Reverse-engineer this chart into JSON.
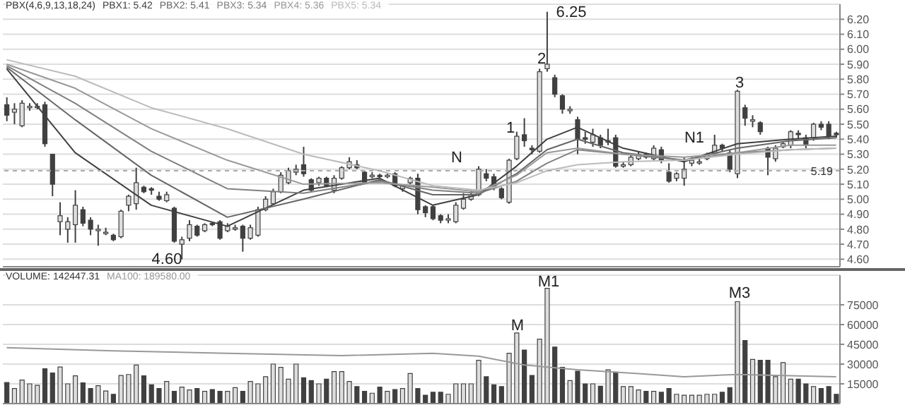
{
  "chart_data": [
    {
      "type": "candlestick",
      "title": "PBX(4,6,9,13,18,24)",
      "grid": "y",
      "tick_labels": "y",
      "categories": [
        null,
        null,
        null,
        null,
        null,
        null,
        null,
        null,
        null,
        null,
        null,
        null,
        null,
        null,
        null,
        null,
        null,
        null,
        null,
        null,
        null,
        null,
        null,
        null,
        null,
        null,
        null,
        null,
        null,
        null,
        null,
        null,
        null,
        null,
        null,
        null,
        null,
        null,
        null,
        null,
        null,
        null,
        null,
        null,
        null,
        null,
        null,
        null,
        null,
        null,
        null,
        null,
        null,
        null,
        null,
        null,
        null,
        null,
        null,
        null,
        null,
        null,
        null,
        null,
        null,
        null,
        null,
        null,
        null,
        null,
        null,
        null,
        null,
        null,
        null,
        null,
        null,
        null,
        null,
        null,
        null,
        null,
        null,
        null,
        null,
        null,
        null,
        null,
        null,
        null,
        null,
        null,
        null,
        null,
        null,
        null,
        null,
        null,
        null,
        null,
        null,
        null,
        null,
        null,
        null,
        null,
        null,
        null,
        null,
        null
      ],
      "ylim": [
        4.55,
        6.3
      ],
      "yticks": [
        {
          "value": 4.6,
          "label": "4.60"
        },
        {
          "value": 4.7,
          "label": "4.70"
        },
        {
          "value": 4.8,
          "label": "4.80"
        },
        {
          "value": 4.9,
          "label": "4.90"
        },
        {
          "value": 5.0,
          "label": "5.00"
        },
        {
          "value": 5.1,
          "label": "5.10"
        },
        {
          "value": 5.2,
          "label": "5.20"
        },
        {
          "value": 5.3,
          "label": "5.30"
        },
        {
          "value": 5.4,
          "label": "5.40"
        },
        {
          "value": 5.5,
          "label": "5.50"
        },
        {
          "value": 5.6,
          "label": "5.60"
        },
        {
          "value": 5.7,
          "label": "5.70"
        },
        {
          "value": 5.8,
          "label": "5.80"
        },
        {
          "value": 5.9,
          "label": "5.90"
        },
        {
          "value": 6.0,
          "label": "6.00"
        },
        {
          "value": 6.1,
          "label": "6.10"
        },
        {
          "value": 6.2,
          "label": "6.20"
        }
      ],
      "ohlc": [
        [
          5.63,
          5.68,
          5.52,
          5.56
        ],
        [
          5.58,
          5.64,
          5.5,
          5.6
        ],
        [
          5.49,
          5.66,
          5.48,
          5.64
        ],
        [
          5.61,
          5.64,
          5.59,
          5.62
        ],
        [
          5.62,
          5.64,
          5.6,
          5.62
        ],
        [
          5.63,
          5.65,
          5.35,
          5.37
        ],
        [
          5.3,
          5.3,
          5.02,
          5.1
        ],
        [
          4.85,
          4.98,
          4.76,
          4.89
        ],
        [
          4.8,
          4.88,
          4.71,
          4.85
        ],
        [
          4.83,
          5.06,
          4.71,
          4.96
        ],
        [
          4.93,
          4.95,
          4.82,
          4.84
        ],
        [
          4.86,
          4.88,
          4.76,
          4.8
        ],
        [
          4.79,
          4.83,
          4.69,
          4.8
        ],
        [
          4.78,
          4.81,
          4.76,
          4.78
        ],
        [
          4.76,
          4.77,
          4.72,
          4.73
        ],
        [
          4.75,
          4.93,
          4.74,
          4.92
        ],
        [
          4.96,
          5.03,
          4.92,
          5.02
        ],
        [
          4.97,
          5.21,
          4.93,
          5.11
        ],
        [
          5.08,
          5.09,
          5.04,
          5.05
        ],
        [
          5.07,
          5.08,
          5.03,
          5.06
        ],
        [
          5.02,
          5.05,
          4.99,
          5.0
        ],
        [
          4.99,
          5.05,
          4.98,
          5.03
        ],
        [
          4.94,
          4.95,
          4.71,
          4.72
        ],
        [
          4.7,
          4.75,
          4.6,
          4.73
        ],
        [
          4.74,
          4.86,
          4.72,
          4.83
        ],
        [
          4.82,
          4.83,
          4.75,
          4.76
        ],
        [
          4.79,
          4.84,
          4.78,
          4.83
        ],
        [
          4.84,
          4.85,
          4.82,
          4.83
        ],
        [
          4.85,
          4.86,
          4.73,
          4.74
        ],
        [
          4.79,
          4.84,
          4.78,
          4.82
        ],
        [
          4.8,
          4.83,
          4.79,
          4.81
        ],
        [
          4.82,
          4.83,
          4.65,
          4.74
        ],
        [
          4.74,
          4.83,
          4.73,
          4.81
        ],
        [
          4.76,
          4.95,
          4.75,
          4.93
        ],
        [
          4.93,
          5.02,
          4.92,
          5.0
        ],
        [
          4.97,
          5.07,
          4.96,
          5.05
        ],
        [
          5.05,
          5.18,
          5.04,
          5.16
        ],
        [
          5.11,
          5.21,
          5.1,
          5.19
        ],
        [
          5.18,
          5.23,
          5.16,
          5.2
        ],
        [
          5.23,
          5.35,
          5.15,
          5.17
        ],
        [
          5.13,
          5.14,
          5.05,
          5.06
        ],
        [
          5.11,
          5.15,
          5.09,
          5.14
        ],
        [
          5.14,
          5.15,
          5.08,
          5.09
        ],
        [
          5.06,
          5.16,
          5.04,
          5.14
        ],
        [
          5.14,
          5.22,
          5.13,
          5.21
        ],
        [
          5.21,
          5.28,
          5.2,
          5.25
        ],
        [
          5.23,
          5.26,
          5.2,
          5.21
        ],
        [
          5.18,
          5.19,
          5.1,
          5.11
        ],
        [
          5.15,
          5.18,
          5.14,
          5.16
        ],
        [
          5.16,
          5.17,
          5.14,
          5.15
        ],
        [
          5.15,
          5.17,
          5.14,
          5.16
        ],
        [
          5.17,
          5.18,
          5.08,
          5.09
        ],
        [
          5.07,
          5.1,
          5.05,
          5.09
        ],
        [
          5.11,
          5.15,
          5.1,
          5.14
        ],
        [
          5.14,
          5.17,
          4.9,
          4.93
        ],
        [
          4.95,
          4.96,
          4.88,
          4.91
        ],
        [
          4.95,
          4.96,
          4.86,
          4.87
        ],
        [
          4.89,
          4.9,
          4.84,
          4.86
        ],
        [
          4.86,
          4.9,
          4.84,
          4.87
        ],
        [
          4.85,
          4.98,
          4.84,
          4.96
        ],
        [
          4.94,
          5.04,
          4.93,
          5.0
        ],
        [
          5.0,
          5.06,
          4.99,
          5.03
        ],
        [
          5.03,
          5.22,
          5.02,
          5.2
        ],
        [
          5.17,
          5.2,
          5.12,
          5.14
        ],
        [
          5.15,
          5.17,
          5.06,
          5.08
        ],
        [
          5.07,
          5.08,
          5.0,
          5.01
        ],
        [
          4.98,
          5.27,
          4.97,
          5.26
        ],
        [
          5.27,
          5.45,
          5.26,
          5.42
        ],
        [
          5.43,
          5.54,
          5.35,
          5.39
        ],
        [
          5.34,
          5.36,
          5.3,
          5.33
        ],
        [
          5.32,
          5.87,
          5.31,
          5.85
        ],
        [
          5.87,
          6.25,
          5.85,
          5.9
        ],
        [
          5.81,
          5.83,
          5.68,
          5.7
        ],
        [
          5.69,
          5.7,
          5.57,
          5.6
        ],
        [
          5.59,
          5.62,
          5.57,
          5.6
        ],
        [
          5.53,
          5.55,
          5.3,
          5.4
        ],
        [
          5.41,
          5.45,
          5.37,
          5.4
        ],
        [
          5.38,
          5.47,
          5.35,
          5.43
        ],
        [
          5.41,
          5.43,
          5.34,
          5.36
        ],
        [
          5.38,
          5.47,
          5.36,
          5.39
        ],
        [
          5.41,
          5.43,
          5.21,
          5.22
        ],
        [
          5.22,
          5.25,
          5.21,
          5.23
        ],
        [
          5.23,
          5.3,
          5.22,
          5.28
        ],
        [
          5.27,
          5.32,
          5.26,
          5.3
        ],
        [
          5.3,
          5.31,
          5.27,
          5.28
        ],
        [
          5.27,
          5.36,
          5.26,
          5.34
        ],
        [
          5.33,
          5.35,
          5.24,
          5.26
        ],
        [
          5.18,
          5.24,
          5.11,
          5.12
        ],
        [
          5.14,
          5.18,
          5.12,
          5.17
        ],
        [
          5.14,
          5.28,
          5.09,
          5.2
        ],
        [
          5.24,
          5.28,
          5.22,
          5.26
        ],
        [
          5.25,
          5.27,
          5.23,
          5.25
        ],
        [
          5.27,
          5.31,
          5.26,
          5.3
        ],
        [
          5.31,
          5.43,
          5.3,
          5.36
        ],
        [
          5.36,
          5.37,
          5.32,
          5.34
        ],
        [
          5.31,
          5.33,
          5.18,
          5.2
        ],
        [
          5.17,
          5.73,
          5.14,
          5.72
        ],
        [
          5.61,
          5.63,
          5.49,
          5.54
        ],
        [
          5.52,
          5.56,
          5.48,
          5.53
        ],
        [
          5.51,
          5.52,
          5.43,
          5.45
        ],
        [
          5.34,
          5.35,
          5.16,
          5.28
        ],
        [
          5.27,
          5.36,
          5.25,
          5.34
        ],
        [
          5.35,
          5.38,
          5.34,
          5.37
        ],
        [
          5.36,
          5.46,
          5.34,
          5.45
        ],
        [
          5.44,
          5.46,
          5.4,
          5.43
        ],
        [
          5.41,
          5.43,
          5.34,
          5.36
        ],
        [
          5.41,
          5.51,
          5.39,
          5.5
        ],
        [
          5.5,
          5.52,
          5.46,
          5.48
        ],
        [
          5.5,
          5.52,
          5.4,
          5.42
        ],
        [
          5.44,
          5.45,
          5.41,
          5.43
        ]
      ],
      "colors": [
        "#404040",
        "#dddddd",
        "#dddddd",
        "#dddddd",
        "#dddddd",
        "#404040",
        "#404040",
        "#dddddd",
        "#dddddd",
        "#dddddd",
        "#404040",
        "#404040",
        "#dddddd",
        "#dddddd",
        "#404040",
        "#dddddd",
        "#dddddd",
        "#dddddd",
        "#404040",
        "#404040",
        "#404040",
        "#dddddd",
        "#404040",
        "#dddddd",
        "#dddddd",
        "#404040",
        "#dddddd",
        "#404040",
        "#404040",
        "#dddddd",
        "#dddddd",
        "#404040",
        "#dddddd",
        "#dddddd",
        "#dddddd",
        "#dddddd",
        "#dddddd",
        "#dddddd",
        "#dddddd",
        "#404040",
        "#404040",
        "#dddddd",
        "#404040",
        "#dddddd",
        "#dddddd",
        "#dddddd",
        "#404040",
        "#404040",
        "#dddddd",
        "#404040",
        "#dddddd",
        "#404040",
        "#dddddd",
        "#dddddd",
        "#404040",
        "#404040",
        "#404040",
        "#404040",
        "#dddddd",
        "#dddddd",
        "#dddddd",
        "#dddddd",
        "#dddddd",
        "#404040",
        "#404040",
        "#404040",
        "#dddddd",
        "#dddddd",
        "#404040",
        "#404040",
        "#dddddd",
        "#dddddd",
        "#404040",
        "#404040",
        "#dddddd",
        "#404040",
        "#404040",
        "#dddddd",
        "#404040",
        "#dddddd",
        "#404040",
        "#dddddd",
        "#dddddd",
        "#dddddd",
        "#404040",
        "#dddddd",
        "#404040",
        "#404040",
        "#dddddd",
        "#dddddd",
        "#dddddd",
        "#dddddd",
        "#dddddd",
        "#dddddd",
        "#404040",
        "#404040",
        "#dddddd",
        "#404040",
        "#dddddd",
        "#404040",
        "#404040",
        "#dddddd",
        "#dddddd",
        "#dddddd",
        "#404040",
        "#404040",
        "#dddddd",
        "#404040",
        "#404040",
        "#404040"
      ],
      "series": [
        {
          "type": "line",
          "name": "PBX1: 5.42",
          "color": "#404040",
          "values": [
            5.87,
            null,
            null,
            null,
            null,
            null,
            null,
            null,
            null,
            5.31,
            null,
            null,
            null,
            null,
            null,
            null,
            null,
            null,
            null,
            4.96,
            null,
            null,
            null,
            null,
            null,
            null,
            null,
            null,
            null,
            4.82,
            null,
            null,
            null,
            null,
            null,
            null,
            null,
            null,
            null,
            5.06,
            null,
            null,
            null,
            null,
            null,
            null,
            null,
            null,
            null,
            5.14,
            null,
            null,
            null,
            null,
            null,
            null,
            4.96,
            null,
            null,
            null,
            null,
            null,
            5.03,
            null,
            null,
            null,
            null,
            5.22,
            null,
            null,
            null,
            5.4,
            null,
            null,
            null,
            5.48,
            null,
            null,
            null,
            null,
            null,
            5.34,
            null,
            null,
            null,
            null,
            null,
            null,
            null,
            5.25,
            null,
            null,
            null,
            null,
            null,
            null,
            5.37,
            null,
            null,
            null,
            null,
            null,
            null,
            5.4,
            null,
            null,
            null,
            null,
            null,
            5.42
          ]
        },
        {
          "type": "line",
          "name": "PBX2: 5.41",
          "color": "#666666",
          "values": [
            5.88,
            null,
            null,
            null,
            null,
            null,
            null,
            null,
            null,
            5.53,
            null,
            null,
            null,
            null,
            null,
            null,
            null,
            null,
            null,
            5.16,
            null,
            null,
            null,
            null,
            null,
            null,
            null,
            null,
            null,
            4.88,
            null,
            null,
            null,
            null,
            null,
            null,
            null,
            null,
            null,
            5.0,
            null,
            null,
            null,
            null,
            null,
            null,
            null,
            null,
            null,
            5.13,
            null,
            null,
            null,
            null,
            null,
            null,
            5.03,
            null,
            null,
            null,
            null,
            null,
            5.03,
            null,
            null,
            null,
            null,
            5.17,
            null,
            null,
            null,
            5.33,
            null,
            null,
            null,
            5.4,
            null,
            null,
            null,
            null,
            null,
            5.31,
            null,
            null,
            null,
            null,
            null,
            null,
            null,
            5.26,
            null,
            null,
            null,
            null,
            null,
            null,
            5.34,
            null,
            null,
            null,
            null,
            null,
            null,
            5.39,
            null,
            null,
            null,
            null,
            null,
            5.41
          ]
        },
        {
          "type": "line",
          "name": "PBX3: 5.34",
          "color": "#808080",
          "values": [
            5.89,
            null,
            null,
            null,
            null,
            null,
            null,
            null,
            null,
            5.64,
            null,
            null,
            null,
            null,
            null,
            null,
            null,
            null,
            null,
            5.32,
            null,
            null,
            null,
            null,
            null,
            null,
            null,
            null,
            null,
            5.07,
            null,
            null,
            null,
            null,
            null,
            null,
            null,
            null,
            null,
            5.04,
            null,
            null,
            null,
            null,
            null,
            null,
            null,
            null,
            null,
            5.12,
            null,
            null,
            null,
            null,
            null,
            null,
            5.06,
            null,
            null,
            null,
            null,
            null,
            5.04,
            null,
            null,
            null,
            null,
            5.12,
            null,
            null,
            null,
            5.24,
            null,
            null,
            null,
            5.33,
            null,
            null,
            null,
            null,
            null,
            5.3,
            null,
            null,
            null,
            null,
            null,
            null,
            null,
            5.26,
            null,
            null,
            null,
            null,
            null,
            null,
            5.31,
            null,
            null,
            null,
            null,
            null,
            null,
            5.33,
            null,
            null,
            null,
            null,
            null,
            5.34
          ]
        },
        {
          "type": "line",
          "name": "PBX4: 5.36",
          "color": "#999999",
          "values": [
            5.9,
            null,
            null,
            null,
            null,
            null,
            null,
            null,
            null,
            5.74,
            null,
            null,
            null,
            null,
            null,
            null,
            null,
            null,
            null,
            5.47,
            null,
            null,
            null,
            null,
            null,
            null,
            null,
            null,
            null,
            5.26,
            null,
            null,
            null,
            null,
            null,
            null,
            null,
            null,
            null,
            5.1,
            null,
            null,
            null,
            null,
            null,
            null,
            null,
            null,
            null,
            5.11,
            null,
            null,
            null,
            null,
            null,
            null,
            5.08,
            null,
            null,
            null,
            null,
            null,
            5.05,
            null,
            null,
            null,
            null,
            5.16,
            null,
            null,
            null,
            5.31,
            null,
            null,
            null,
            5.34,
            null,
            null,
            null,
            null,
            null,
            5.3,
            null,
            null,
            null,
            null,
            null,
            null,
            null,
            5.28,
            null,
            null,
            null,
            null,
            null,
            null,
            5.31,
            null,
            null,
            null,
            null,
            null,
            null,
            5.36,
            null,
            null,
            null,
            null,
            null,
            5.36
          ]
        },
        {
          "type": "line",
          "name": "PBX5: 5.34",
          "color": "#bbbbbb",
          "values": [
            5.93,
            null,
            null,
            null,
            null,
            null,
            null,
            null,
            null,
            5.82,
            null,
            null,
            null,
            null,
            null,
            null,
            null,
            null,
            null,
            5.61,
            null,
            null,
            null,
            null,
            null,
            null,
            null,
            null,
            null,
            5.47,
            null,
            null,
            null,
            null,
            null,
            null,
            null,
            null,
            null,
            5.3,
            null,
            null,
            null,
            null,
            null,
            null,
            null,
            null,
            null,
            5.19,
            null,
            null,
            null,
            null,
            null,
            null,
            5.09,
            null,
            null,
            null,
            null,
            null,
            5.06,
            null,
            null,
            null,
            null,
            5.11,
            null,
            null,
            null,
            5.19,
            null,
            null,
            null,
            5.23,
            null,
            null,
            null,
            null,
            null,
            5.25,
            null,
            null,
            null,
            null,
            null,
            null,
            null,
            5.26,
            null,
            null,
            null,
            null,
            null,
            null,
            5.3,
            null,
            null,
            null,
            null,
            null,
            null,
            5.33,
            null,
            null,
            null,
            null,
            null,
            5.34
          ]
        }
      ],
      "ref_lines": [
        {
          "axis": "y",
          "value": 5.19,
          "label": "5.19",
          "color": "#aaaaaa"
        }
      ],
      "annotations": [
        "1",
        "2",
        "3",
        "N",
        "N1",
        "6.25",
        "4.60"
      ]
    },
    {
      "type": "bar",
      "title": "VOLUME: 142447.31",
      "grid": "y",
      "tick_labels": "y",
      "categories": [
        null,
        null,
        null,
        null,
        null,
        null,
        null,
        null,
        null,
        null,
        null,
        null,
        null,
        null,
        null,
        null,
        null,
        null,
        null,
        null,
        null,
        null,
        null,
        null,
        null,
        null,
        null,
        null,
        null,
        null,
        null,
        null,
        null,
        null,
        null,
        null,
        null,
        null,
        null,
        null,
        null,
        null,
        null,
        null,
        null,
        null,
        null,
        null,
        null,
        null,
        null,
        null,
        null,
        null,
        null,
        null,
        null,
        null,
        null,
        null,
        null,
        null,
        null,
        null,
        null,
        null,
        null,
        null,
        null,
        null,
        null,
        null,
        null,
        null,
        null,
        null,
        null,
        null,
        null,
        null,
        null,
        null,
        null,
        null,
        null,
        null,
        null,
        null,
        null,
        null,
        null,
        null,
        null,
        null,
        null,
        null,
        null,
        null,
        null,
        null,
        null,
        null,
        null,
        null,
        null,
        null,
        null,
        null,
        null,
        null
      ],
      "ylim": [
        0,
        97500
      ],
      "yticks": [
        15000,
        30000,
        45000,
        60000,
        75000
      ],
      "values": [
        16000,
        11400,
        17900,
        15000,
        13900,
        26400,
        23200,
        27800,
        15000,
        21100,
        15700,
        11400,
        13600,
        9600,
        7100,
        21400,
        22100,
        29300,
        21100,
        14300,
        11400,
        16800,
        9300,
        12500,
        10400,
        11400,
        9300,
        10700,
        9300,
        9300,
        12100,
        9300,
        16800,
        15000,
        20400,
        30000,
        27500,
        18600,
        30000,
        19600,
        17500,
        15000,
        18600,
        24300,
        24300,
        16800,
        12900,
        9300,
        7900,
        12500,
        9300,
        10700,
        11400,
        22800,
        11400,
        6400,
        8600,
        8600,
        7100,
        15000,
        15000,
        15000,
        32900,
        20400,
        14300,
        12900,
        38200,
        53600,
        40700,
        21400,
        48900,
        87500,
        42900,
        27500,
        17500,
        24600,
        15000,
        15000,
        13200,
        25700,
        23900,
        12900,
        12900,
        10400,
        9300,
        9300,
        8600,
        11400,
        7100,
        6400,
        6400,
        6400,
        7100,
        7100,
        8600,
        12100,
        77400,
        47900,
        33500,
        32900,
        32900,
        20400,
        31100,
        18600,
        18600,
        15000,
        12900,
        11400,
        12900,
        7100
      ],
      "colors": [
        "#404040",
        "#dddddd",
        "#dddddd",
        "#dddddd",
        "#dddddd",
        "#404040",
        "#404040",
        "#dddddd",
        "#dddddd",
        "#dddddd",
        "#404040",
        "#404040",
        "#dddddd",
        "#dddddd",
        "#404040",
        "#dddddd",
        "#dddddd",
        "#dddddd",
        "#404040",
        "#404040",
        "#404040",
        "#dddddd",
        "#404040",
        "#dddddd",
        "#dddddd",
        "#404040",
        "#dddddd",
        "#404040",
        "#404040",
        "#dddddd",
        "#dddddd",
        "#404040",
        "#dddddd",
        "#dddddd",
        "#dddddd",
        "#dddddd",
        "#dddddd",
        "#dddddd",
        "#dddddd",
        "#404040",
        "#404040",
        "#dddddd",
        "#404040",
        "#dddddd",
        "#dddddd",
        "#dddddd",
        "#404040",
        "#404040",
        "#dddddd",
        "#404040",
        "#dddddd",
        "#404040",
        "#dddddd",
        "#dddddd",
        "#404040",
        "#404040",
        "#404040",
        "#404040",
        "#dddddd",
        "#dddddd",
        "#dddddd",
        "#dddddd",
        "#dddddd",
        "#404040",
        "#404040",
        "#404040",
        "#dddddd",
        "#dddddd",
        "#404040",
        "#404040",
        "#dddddd",
        "#dddddd",
        "#404040",
        "#404040",
        "#dddddd",
        "#404040",
        "#404040",
        "#dddddd",
        "#404040",
        "#dddddd",
        "#404040",
        "#dddddd",
        "#dddddd",
        "#dddddd",
        "#404040",
        "#dddddd",
        "#404040",
        "#404040",
        "#dddddd",
        "#dddddd",
        "#dddddd",
        "#dddddd",
        "#dddddd",
        "#dddddd",
        "#404040",
        "#404040",
        "#dddddd",
        "#404040",
        "#dddddd",
        "#404040",
        "#404040",
        "#dddddd",
        "#dddddd",
        "#dddddd",
        "#404040",
        "#404040",
        "#dddddd",
        "#404040",
        "#404040",
        "#404040"
      ],
      "series": [
        {
          "type": "line",
          "name": "MA100: 189580.00",
          "color": "#999999",
          "values": [
            42500,
            null,
            null,
            null,
            null,
            null,
            null,
            null,
            null,
            null,
            null,
            null,
            null,
            null,
            40000,
            null,
            null,
            null,
            null,
            null,
            null,
            null,
            null,
            null,
            null,
            null,
            null,
            null,
            null,
            38200,
            null,
            null,
            null,
            null,
            null,
            null,
            null,
            null,
            null,
            null,
            null,
            null,
            null,
            null,
            36400,
            null,
            null,
            null,
            null,
            null,
            null,
            null,
            null,
            null,
            null,
            null,
            38200,
            null,
            null,
            null,
            null,
            null,
            36000,
            null,
            null,
            null,
            null,
            null,
            29300,
            null,
            null,
            null,
            null,
            null,
            null,
            25700,
            null,
            null,
            null,
            null,
            null,
            null,
            null,
            22800,
            null,
            null,
            null,
            null,
            null,
            20400,
            null,
            null,
            null,
            null,
            null,
            null,
            22100,
            null,
            null,
            null,
            null,
            null,
            null,
            null,
            null,
            null,
            null,
            null,
            null,
            20400
          ]
        }
      ],
      "annotations": [
        "M",
        "M1",
        "M3"
      ]
    }
  ]
}
